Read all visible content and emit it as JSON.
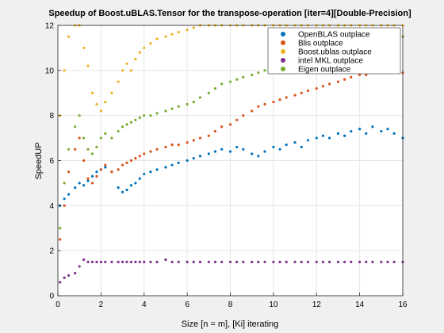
{
  "chart_data": {
    "type": "scatter",
    "title": "Speedup of Boost.uBLAS.Tensor for the transpose-operation [iter=4][Double-Precision]",
    "xlabel": "Size [n = m], [Ki] iterating",
    "ylabel": "SpeedUP",
    "xlim": [
      0,
      16
    ],
    "ylim": [
      0,
      12
    ],
    "xticks": [
      "0",
      "2",
      "4",
      "6",
      "8",
      "10",
      "12",
      "14",
      "16"
    ],
    "yticks": [
      "0",
      "2",
      "4",
      "6",
      "8",
      "10",
      "12"
    ],
    "grid": true,
    "legend_position": "top-right",
    "series": [
      {
        "name": "OpenBLAS outplace",
        "color": "#0072BD",
        "x": [
          0.1,
          0.3,
          0.5,
          0.8,
          1.0,
          1.2,
          1.4,
          1.6,
          1.8,
          2.0,
          2.2,
          2.5,
          2.8,
          3.0,
          3.2,
          3.4,
          3.6,
          3.8,
          4.0,
          4.3,
          4.6,
          5.0,
          5.3,
          5.6,
          6.0,
          6.3,
          6.6,
          7.0,
          7.3,
          7.6,
          8.0,
          8.3,
          8.6,
          9.0,
          9.3,
          9.6,
          10.0,
          10.3,
          10.6,
          11.0,
          11.3,
          11.6,
          12.0,
          12.3,
          12.6,
          13.0,
          13.3,
          13.6,
          14.0,
          14.3,
          14.6,
          15.0,
          15.3,
          15.6,
          16.0
        ],
        "y": [
          4.0,
          4.3,
          4.5,
          4.8,
          5.0,
          4.9,
          5.1,
          5.3,
          5.5,
          5.6,
          5.7,
          5.5,
          4.8,
          4.6,
          4.7,
          4.9,
          5.0,
          5.2,
          5.4,
          5.5,
          5.6,
          5.7,
          5.8,
          5.9,
          6.0,
          6.1,
          6.2,
          6.3,
          6.4,
          6.5,
          6.4,
          6.6,
          6.5,
          6.3,
          6.2,
          6.4,
          6.6,
          6.5,
          6.7,
          6.8,
          6.6,
          6.9,
          7.0,
          7.1,
          7.0,
          7.2,
          7.1,
          7.3,
          7.4,
          7.2,
          7.5,
          7.3,
          7.4,
          7.2,
          7.0
        ]
      },
      {
        "name": "Blis outplace",
        "color": "#D95319",
        "x": [
          0.1,
          0.3,
          0.5,
          0.8,
          1.0,
          1.2,
          1.4,
          1.6,
          1.8,
          2.0,
          2.2,
          2.5,
          2.8,
          3.0,
          3.2,
          3.4,
          3.6,
          3.8,
          4.0,
          4.3,
          4.6,
          5.0,
          5.3,
          5.6,
          6.0,
          6.3,
          6.6,
          7.0,
          7.3,
          7.6,
          8.0,
          8.3,
          8.6,
          9.0,
          9.3,
          9.6,
          10.0,
          10.3,
          10.6,
          11.0,
          11.3,
          11.6,
          12.0,
          12.3,
          12.6,
          13.0,
          13.3,
          13.6,
          14.0,
          14.3,
          14.6,
          15.0,
          15.3,
          15.6,
          16.0
        ],
        "y": [
          2.5,
          4.0,
          5.5,
          6.5,
          7.0,
          6.0,
          5.2,
          5.0,
          5.3,
          5.6,
          5.8,
          5.5,
          5.6,
          5.8,
          5.9,
          6.0,
          6.1,
          6.2,
          6.3,
          6.4,
          6.5,
          6.6,
          6.7,
          6.7,
          6.8,
          6.9,
          7.0,
          7.1,
          7.3,
          7.5,
          7.6,
          7.8,
          8.0,
          8.2,
          8.4,
          8.5,
          8.6,
          8.7,
          8.8,
          8.9,
          9.0,
          9.1,
          9.2,
          9.3,
          9.4,
          9.5,
          9.6,
          9.7,
          9.8,
          9.8,
          9.9,
          10.0,
          10.1,
          10.0,
          9.9
        ]
      },
      {
        "name": "Boost.ublas outplace",
        "color": "#EDB120",
        "x": [
          0.1,
          0.3,
          0.5,
          0.8,
          1.0,
          1.2,
          1.4,
          1.6,
          1.8,
          2.0,
          2.2,
          2.5,
          2.8,
          3.0,
          3.2,
          3.4,
          3.6,
          3.8,
          4.0,
          4.3,
          4.6,
          5.0,
          5.3,
          5.6,
          6.0,
          6.3,
          6.6,
          7.0,
          7.3,
          7.6,
          8.0,
          8.3,
          8.6,
          9.0,
          9.3,
          9.6,
          10.0,
          10.3,
          10.6,
          11.0,
          11.3,
          11.6,
          12.0,
          12.3,
          12.6,
          13.0,
          13.3,
          13.6,
          14.0,
          14.3,
          14.6,
          15.0,
          15.3,
          15.6,
          16.0
        ],
        "y": [
          8.0,
          10.0,
          11.5,
          12.0,
          12.0,
          11.0,
          10.2,
          9.0,
          8.5,
          8.2,
          8.6,
          9.0,
          9.5,
          10.0,
          10.3,
          10.0,
          10.5,
          10.8,
          11.0,
          11.2,
          11.4,
          11.5,
          11.6,
          11.7,
          11.8,
          11.9,
          12.0,
          12.0,
          12.0,
          12.0,
          12.0,
          12.0,
          12.0,
          12.0,
          12.0,
          12.0,
          12.0,
          12.0,
          12.0,
          12.0,
          12.0,
          12.0,
          12.0,
          12.0,
          12.0,
          12.0,
          12.0,
          12.0,
          12.0,
          12.0,
          12.0,
          12.0,
          12.0,
          12.0,
          12.0
        ]
      },
      {
        "name": "intel MKL outplace",
        "color": "#7E2F8E",
        "x": [
          0.1,
          0.3,
          0.5,
          0.8,
          1.0,
          1.2,
          1.4,
          1.6,
          1.8,
          2.0,
          2.2,
          2.5,
          2.8,
          3.0,
          3.2,
          3.4,
          3.6,
          3.8,
          4.0,
          4.3,
          4.6,
          5.0,
          5.3,
          5.6,
          6.0,
          6.3,
          6.6,
          7.0,
          7.3,
          7.6,
          8.0,
          8.3,
          8.6,
          9.0,
          9.3,
          9.6,
          10.0,
          10.3,
          10.6,
          11.0,
          11.3,
          11.6,
          12.0,
          12.3,
          12.6,
          13.0,
          13.3,
          13.6,
          14.0,
          14.3,
          14.6,
          15.0,
          15.3,
          15.6,
          16.0
        ],
        "y": [
          0.6,
          0.8,
          0.9,
          1.0,
          1.3,
          1.6,
          1.5,
          1.5,
          1.5,
          1.5,
          1.5,
          1.5,
          1.5,
          1.5,
          1.5,
          1.5,
          1.5,
          1.5,
          1.5,
          1.5,
          1.5,
          1.6,
          1.5,
          1.5,
          1.5,
          1.5,
          1.5,
          1.5,
          1.5,
          1.5,
          1.5,
          1.5,
          1.5,
          1.5,
          1.5,
          1.5,
          1.5,
          1.5,
          1.5,
          1.5,
          1.5,
          1.5,
          1.5,
          1.5,
          1.5,
          1.5,
          1.5,
          1.5,
          1.5,
          1.5,
          1.5,
          1.5,
          1.5,
          1.5,
          1.5
        ]
      },
      {
        "name": "Eigen outplace",
        "color": "#77AC30",
        "x": [
          0.1,
          0.3,
          0.5,
          0.8,
          1.0,
          1.2,
          1.4,
          1.6,
          1.8,
          2.0,
          2.2,
          2.5,
          2.8,
          3.0,
          3.2,
          3.4,
          3.6,
          3.8,
          4.0,
          4.3,
          4.6,
          5.0,
          5.3,
          5.6,
          6.0,
          6.3,
          6.6,
          7.0,
          7.3,
          7.6,
          8.0,
          8.3,
          8.6,
          9.0,
          9.3,
          9.6,
          10.0,
          10.3,
          10.6,
          11.0,
          11.3,
          11.6,
          12.0,
          12.3,
          12.6,
          13.0,
          13.3,
          13.6,
          14.0,
          14.3,
          14.6,
          15.0,
          15.3,
          15.6,
          16.0
        ],
        "y": [
          3.0,
          5.0,
          6.5,
          7.5,
          8.0,
          7.0,
          6.5,
          6.3,
          6.6,
          7.0,
          7.2,
          7.0,
          7.3,
          7.5,
          7.6,
          7.7,
          7.8,
          7.9,
          8.0,
          8.0,
          8.1,
          8.2,
          8.3,
          8.4,
          8.5,
          8.6,
          8.8,
          9.0,
          9.2,
          9.4,
          9.5,
          9.6,
          9.7,
          9.8,
          9.9,
          10.0,
          10.1,
          10.2,
          10.3,
          10.4,
          10.5,
          10.6,
          10.7,
          10.8,
          10.9,
          11.0,
          11.1,
          11.2,
          11.3,
          11.2,
          11.3,
          11.4,
          11.3,
          11.4,
          11.5
        ]
      }
    ]
  }
}
